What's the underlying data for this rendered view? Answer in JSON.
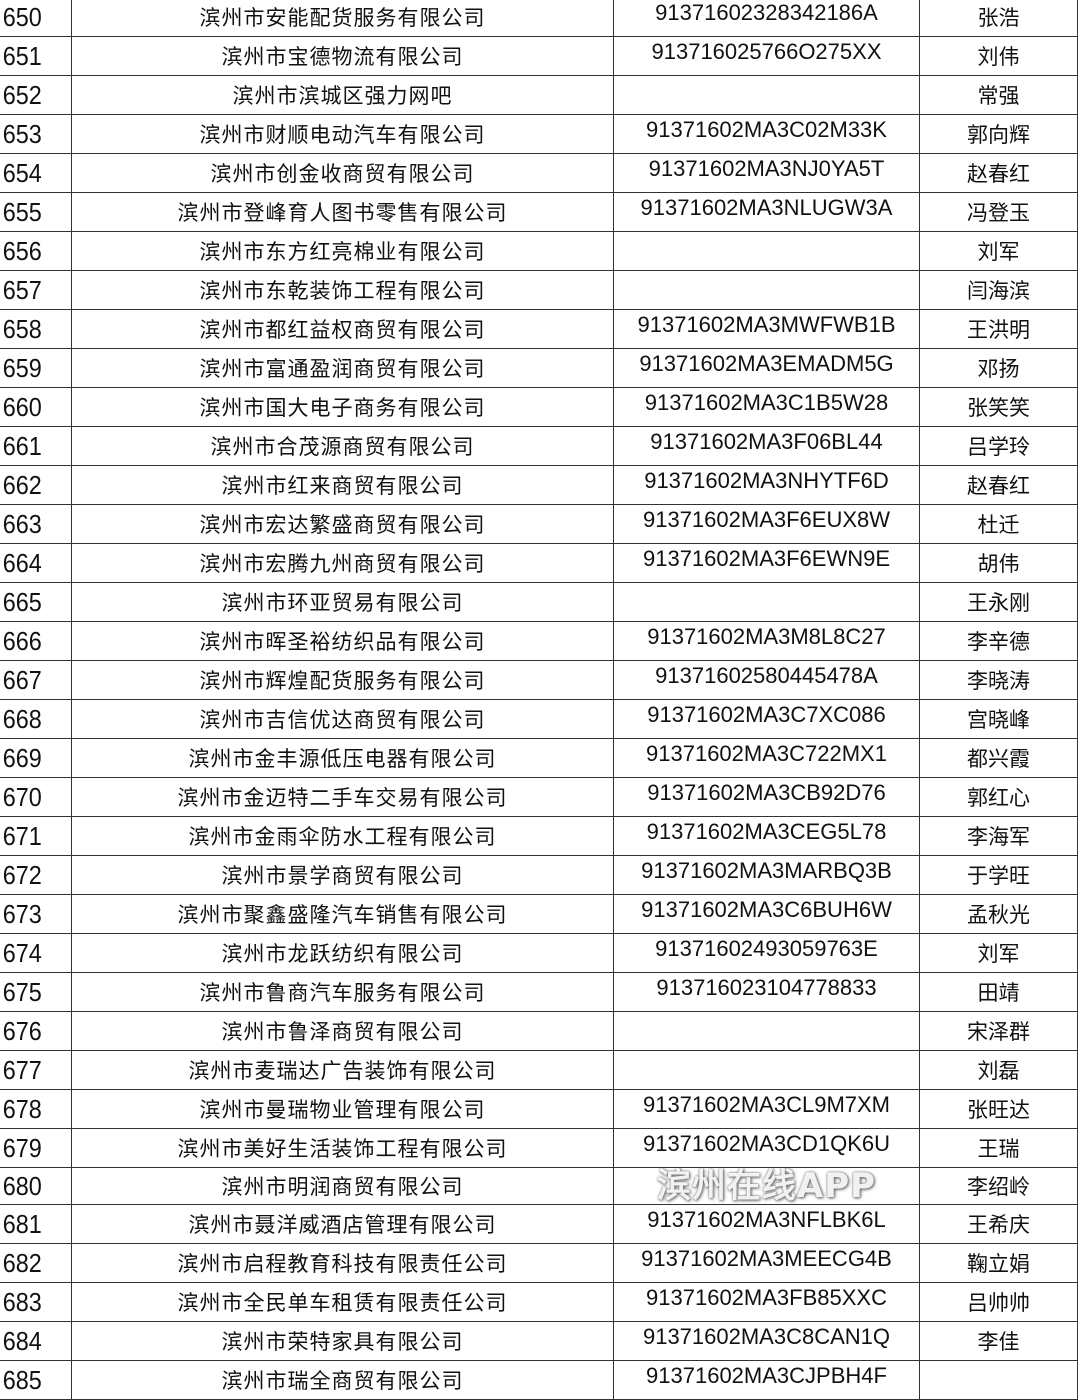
{
  "rows": [
    {
      "no": "650",
      "name": "滨州市安能配货服务有限公司",
      "code": "91371602328342186A",
      "person": "张浩"
    },
    {
      "no": "651",
      "name": "滨州市宝德物流有限公司",
      "code": "913716025766O275XX",
      "person": "刘伟"
    },
    {
      "no": "652",
      "name": "滨州市滨城区强力网吧",
      "code": "",
      "person": "常强"
    },
    {
      "no": "653",
      "name": "滨州市财顺电动汽车有限公司",
      "code": "91371602MA3C02M33K",
      "person": "郭向辉"
    },
    {
      "no": "654",
      "name": "滨州市创金收商贸有限公司",
      "code": "91371602MA3NJ0YA5T",
      "person": "赵春红"
    },
    {
      "no": "655",
      "name": "滨州市登峰育人图书零售有限公司",
      "code": "91371602MA3NLUGW3A",
      "person": "冯登玉"
    },
    {
      "no": "656",
      "name": "滨州市东方红亮棉业有限公司",
      "code": "",
      "person": "刘军"
    },
    {
      "no": "657",
      "name": "滨州市东乾装饰工程有限公司",
      "code": "",
      "person": "闫海滨"
    },
    {
      "no": "658",
      "name": "滨州市都红益权商贸有限公司",
      "code": "91371602MA3MWFWB1B",
      "person": "王洪明"
    },
    {
      "no": "659",
      "name": "滨州市富通盈润商贸有限公司",
      "code": "91371602MA3EMADM5G",
      "person": "邓扬"
    },
    {
      "no": "660",
      "name": "滨州市国大电子商务有限公司",
      "code": "91371602MA3C1B5W28",
      "person": "张笑笑"
    },
    {
      "no": "661",
      "name": "滨州市合茂源商贸有限公司",
      "code": "91371602MA3F06BL44",
      "person": "吕学玲"
    },
    {
      "no": "662",
      "name": "滨州市红来商贸有限公司",
      "code": "91371602MA3NHYTF6D",
      "person": "赵春红"
    },
    {
      "no": "663",
      "name": "滨州市宏达繁盛商贸有限公司",
      "code": "91371602MA3F6EUX8W",
      "person": "杜迁"
    },
    {
      "no": "664",
      "name": "滨州市宏腾九州商贸有限公司",
      "code": "91371602MA3F6EWN9E",
      "person": "胡伟"
    },
    {
      "no": "665",
      "name": "滨州市环亚贸易有限公司",
      "code": "",
      "person": "王永刚"
    },
    {
      "no": "666",
      "name": "滨州市晖圣裕纺织品有限公司",
      "code": "91371602MA3M8L8C27",
      "person": "李辛德"
    },
    {
      "no": "667",
      "name": "滨州市辉煌配货服务有限公司",
      "code": "91371602580445478A",
      "person": "李晓涛"
    },
    {
      "no": "668",
      "name": "滨州市吉信优达商贸有限公司",
      "code": "91371602MA3C7XC086",
      "person": "宫晓峰"
    },
    {
      "no": "669",
      "name": "滨州市金丰源低压电器有限公司",
      "code": "91371602MA3C722MX1",
      "person": "都兴霞"
    },
    {
      "no": "670",
      "name": "滨州市金迈特二手车交易有限公司",
      "code": "91371602MA3CB92D76",
      "person": "郭红心"
    },
    {
      "no": "671",
      "name": "滨州市金雨伞防水工程有限公司",
      "code": "91371602MA3CEG5L78",
      "person": "李海军"
    },
    {
      "no": "672",
      "name": "滨州市景学商贸有限公司",
      "code": "91371602MA3MARBQ3B",
      "person": "于学旺"
    },
    {
      "no": "673",
      "name": "滨州市聚鑫盛隆汽车销售有限公司",
      "code": "91371602MA3C6BUH6W",
      "person": "孟秋光"
    },
    {
      "no": "674",
      "name": "滨州市龙跃纺织有限公司",
      "code": "91371602493059763E",
      "person": "刘军"
    },
    {
      "no": "675",
      "name": "滨州市鲁商汽车服务有限公司",
      "code": "91371602310477883３",
      "person": "田靖"
    },
    {
      "no": "676",
      "name": "滨州市鲁泽商贸有限公司",
      "code": "",
      "person": "宋泽群"
    },
    {
      "no": "677",
      "name": "滨州市麦瑞达广告装饰有限公司",
      "code": "",
      "person": "刘磊"
    },
    {
      "no": "678",
      "name": "滨州市曼瑞物业管理有限公司",
      "code": "91371602MA3CL9M7XM",
      "person": "张旺达"
    },
    {
      "no": "679",
      "name": "滨州市美好生活装饰工程有限公司",
      "code": "91371602MA3CD1QK6U",
      "person": "王瑞"
    },
    {
      "no": "680",
      "name": "滨州市明润商贸有限公司",
      "code": "",
      "person": "李绍岭"
    },
    {
      "no": "681",
      "name": "滨州市聂洋威酒店管理有限公司",
      "code": "91371602MA3NFLBK6L",
      "person": "王希庆"
    },
    {
      "no": "682",
      "name": "滨州市启程教育科技有限责任公司",
      "code": "91371602MA3MEECG4B",
      "person": "鞠立娟"
    },
    {
      "no": "683",
      "name": "滨州市全民单车租赁有限责任公司",
      "code": "91371602MA3FB85XXC",
      "person": "吕帅帅"
    },
    {
      "no": "684",
      "name": "滨州市荣特家具有限公司",
      "code": "91371602MA3C8CAN1Q",
      "person": "李佳"
    },
    {
      "no": "685",
      "name": "滨州市瑞全商贸有限公司",
      "code": "91371602MA3CJPBH4F",
      "person": ""
    }
  ],
  "watermark": "滨州在线APP"
}
